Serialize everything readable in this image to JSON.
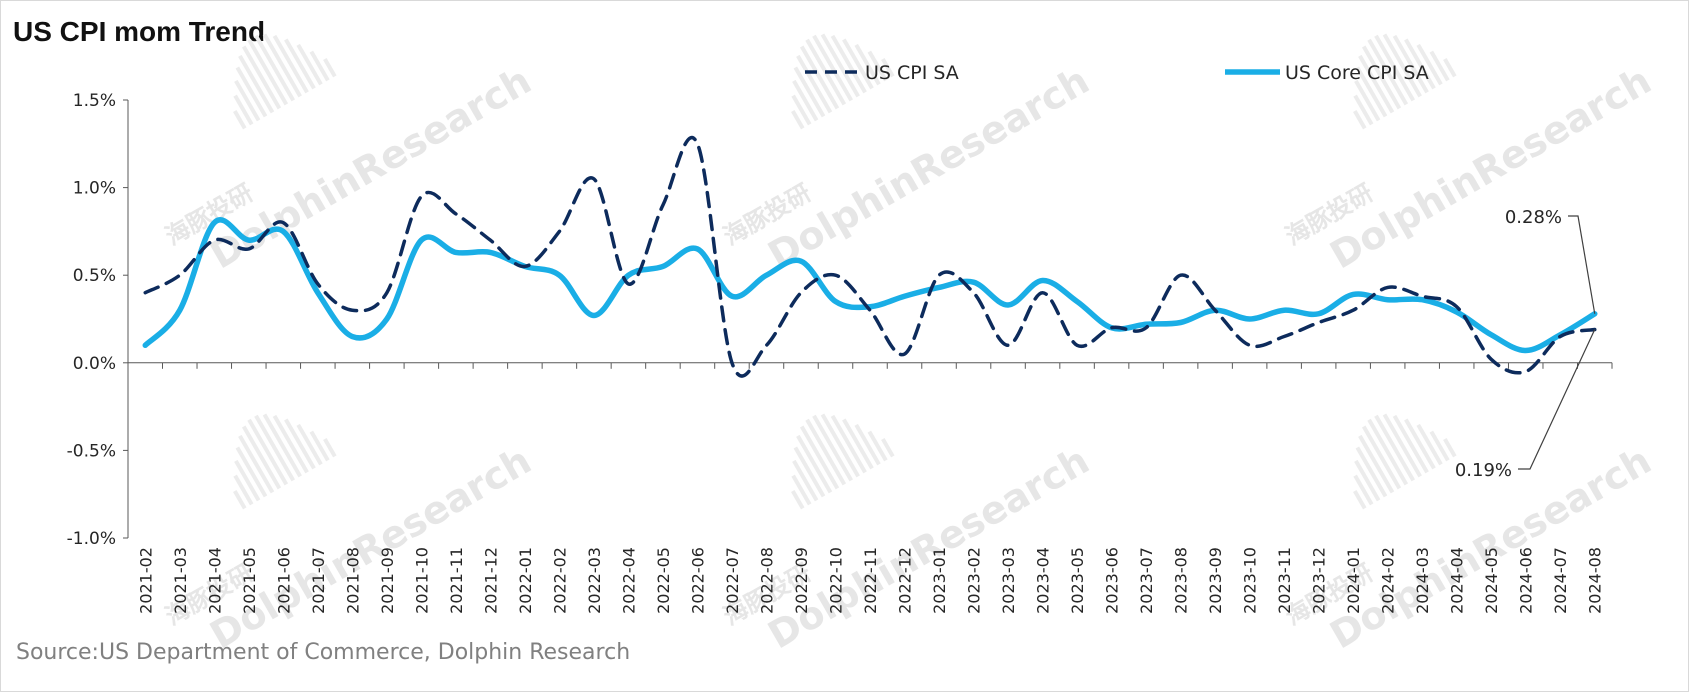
{
  "title": "US CPI mom Trend",
  "source": "Source:US Department of Commerce, Dolphin Research",
  "watermark": {
    "text": "DolphinResearch",
    "cn": "海豚投研"
  },
  "colors": {
    "cpi": "#0d2b5c",
    "core": "#1aaee6",
    "axis": "#595959",
    "text": "#262626"
  },
  "chart_data": {
    "type": "line",
    "title": "US CPI mom Trend",
    "xlabel": "",
    "ylabel": "",
    "ylim": [
      -1.0,
      1.5
    ],
    "yticks": [
      "1.5%",
      "1.0%",
      "0.5%",
      "0.0%",
      "-0.5%",
      "-1.0%"
    ],
    "ytick_values": [
      1.5,
      1.0,
      0.5,
      0.0,
      -0.5,
      -1.0
    ],
    "legend_position": "top",
    "grid": false,
    "categories": [
      "2021-02",
      "2021-03",
      "2021-04",
      "2021-05",
      "2021-06",
      "2021-07",
      "2021-08",
      "2021-09",
      "2021-10",
      "2021-11",
      "2021-12",
      "2022-01",
      "2022-02",
      "2022-03",
      "2022-04",
      "2022-05",
      "2022-06",
      "2022-07",
      "2022-08",
      "2022-09",
      "2022-10",
      "2022-11",
      "2022-12",
      "2023-01",
      "2023-02",
      "2023-03",
      "2023-04",
      "2023-05",
      "2023-06",
      "2023-07",
      "2023-08",
      "2023-09",
      "2023-10",
      "2023-11",
      "2023-12",
      "2024-01",
      "2024-02",
      "2024-03",
      "2024-04",
      "2024-05",
      "2024-06",
      "2024-07",
      "2024-08"
    ],
    "series": [
      {
        "name": "US CPI SA",
        "style": "dashed",
        "values": [
          0.4,
          0.5,
          0.7,
          0.65,
          0.8,
          0.45,
          0.3,
          0.4,
          0.95,
          0.85,
          0.7,
          0.55,
          0.75,
          1.05,
          0.45,
          0.9,
          1.25,
          0.0,
          0.1,
          0.4,
          0.5,
          0.3,
          0.05,
          0.5,
          0.4,
          0.1,
          0.4,
          0.1,
          0.2,
          0.2,
          0.5,
          0.3,
          0.1,
          0.15,
          0.23,
          0.3,
          0.43,
          0.38,
          0.32,
          0.02,
          -0.05,
          0.15,
          0.19
        ]
      },
      {
        "name": "US Core CPI SA",
        "style": "solid",
        "values": [
          0.1,
          0.3,
          0.8,
          0.7,
          0.75,
          0.4,
          0.15,
          0.25,
          0.7,
          0.63,
          0.63,
          0.55,
          0.5,
          0.27,
          0.5,
          0.55,
          0.65,
          0.38,
          0.5,
          0.58,
          0.35,
          0.32,
          0.38,
          0.43,
          0.46,
          0.33,
          0.47,
          0.35,
          0.2,
          0.22,
          0.23,
          0.3,
          0.25,
          0.3,
          0.28,
          0.39,
          0.36,
          0.36,
          0.29,
          0.16,
          0.07,
          0.16,
          0.28
        ]
      }
    ],
    "annotations": [
      {
        "text": "0.28%",
        "series": "US Core CPI SA",
        "category": "2024-08"
      },
      {
        "text": "0.19%",
        "series": "US CPI SA",
        "category": "2024-08"
      }
    ]
  }
}
